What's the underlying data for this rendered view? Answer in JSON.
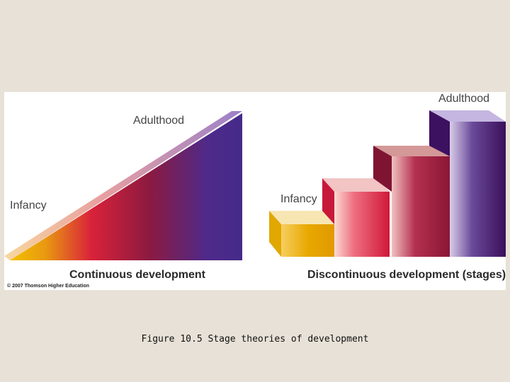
{
  "continuous": {
    "start_label": "Infancy",
    "end_label": "Adulthood",
    "caption": "Continuous development"
  },
  "discontinuous": {
    "start_label": "Infancy",
    "end_label": "Adulthood",
    "caption": "Discontinuous development (stages)",
    "step_count": 4
  },
  "copyright": "© 2007 Thomson Higher Education",
  "figure_caption": "Figure 10.5  Stage theories of development",
  "colors": {
    "gold": "#e6a600",
    "red": "#d61f3a",
    "crimson": "#8a1838",
    "purple": "#4a2a8c",
    "dark_purple": "#3a0f5a"
  }
}
